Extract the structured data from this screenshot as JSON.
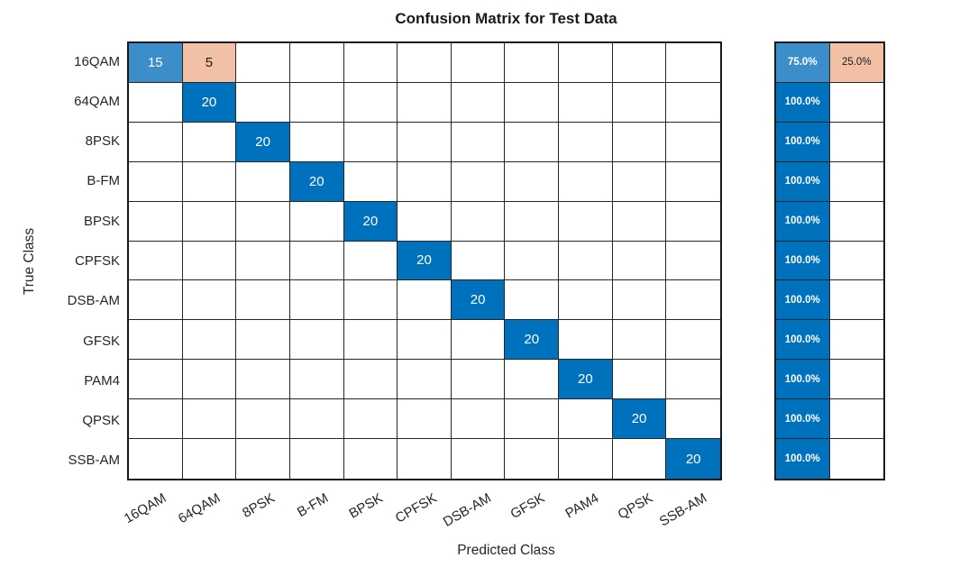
{
  "chart_data": {
    "type": "heatmap",
    "subtype": "confusion-matrix",
    "title": "Confusion Matrix for Test Data",
    "xlabel": "Predicted Class",
    "ylabel": "True Class",
    "classes": [
      "16QAM",
      "64QAM",
      "8PSK",
      "B-FM",
      "BPSK",
      "CPFSK",
      "DSB-AM",
      "GFSK",
      "PAM4",
      "QPSK",
      "SSB-AM"
    ],
    "matrix": [
      [
        15,
        5,
        0,
        0,
        0,
        0,
        0,
        0,
        0,
        0,
        0
      ],
      [
        0,
        20,
        0,
        0,
        0,
        0,
        0,
        0,
        0,
        0,
        0
      ],
      [
        0,
        0,
        20,
        0,
        0,
        0,
        0,
        0,
        0,
        0,
        0
      ],
      [
        0,
        0,
        0,
        20,
        0,
        0,
        0,
        0,
        0,
        0,
        0
      ],
      [
        0,
        0,
        0,
        0,
        20,
        0,
        0,
        0,
        0,
        0,
        0
      ],
      [
        0,
        0,
        0,
        0,
        0,
        20,
        0,
        0,
        0,
        0,
        0
      ],
      [
        0,
        0,
        0,
        0,
        0,
        0,
        20,
        0,
        0,
        0,
        0
      ],
      [
        0,
        0,
        0,
        0,
        0,
        0,
        0,
        20,
        0,
        0,
        0
      ],
      [
        0,
        0,
        0,
        0,
        0,
        0,
        0,
        0,
        20,
        0,
        0
      ],
      [
        0,
        0,
        0,
        0,
        0,
        0,
        0,
        0,
        0,
        20,
        0
      ],
      [
        0,
        0,
        0,
        0,
        0,
        0,
        0,
        0,
        0,
        0,
        20
      ]
    ],
    "max_value": 20,
    "row_summary": {
      "tpr": [
        "75.0%",
        "100.0%",
        "100.0%",
        "100.0%",
        "100.0%",
        "100.0%",
        "100.0%",
        "100.0%",
        "100.0%",
        "100.0%",
        "100.0%"
      ],
      "fnr": [
        "25.0%",
        "",
        "",
        "",
        "",
        "",
        "",
        "",
        "",
        "",
        ""
      ]
    },
    "legend_position": "right-row-summary",
    "grid_on": true,
    "colors": {
      "diagonal_full": "#0072BD",
      "diagonal_partial": "#3B8EC9",
      "off_diagonal": "#F2C0A5",
      "grid_line": "#262626",
      "cell_text_light": "#FFFFFF",
      "cell_text_dark": "#1A1A1A"
    }
  }
}
